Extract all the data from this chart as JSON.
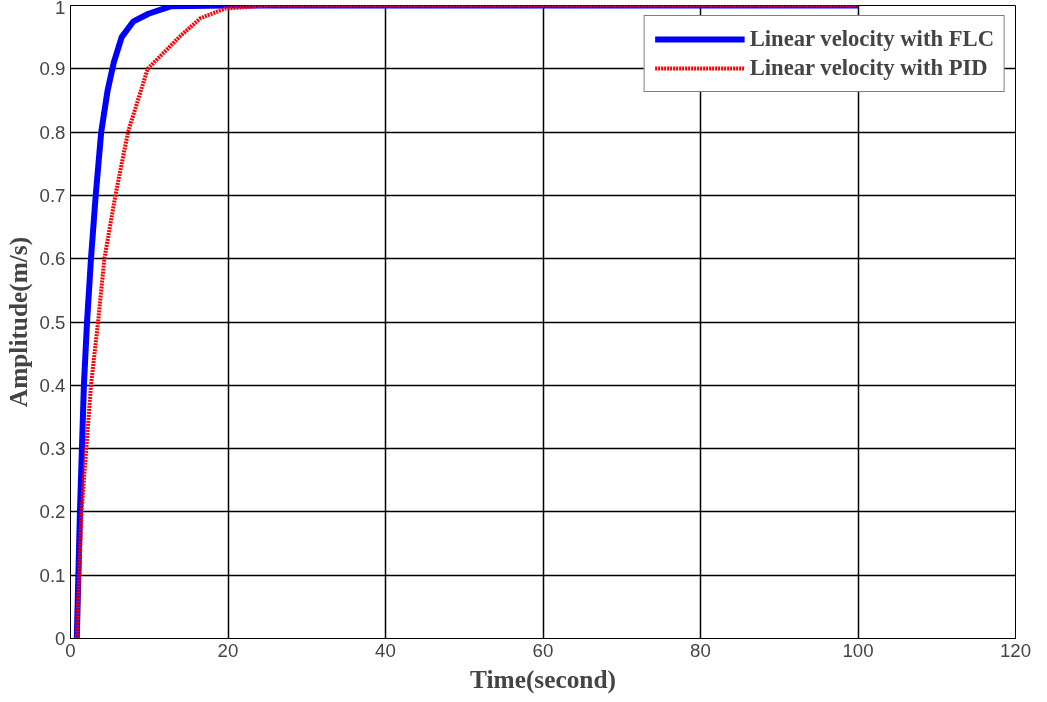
{
  "chart_data": {
    "type": "line",
    "xlabel": "Time(second)",
    "ylabel": "Amplitude(m/s)",
    "xlim": [
      0,
      120
    ],
    "ylim": [
      0,
      1
    ],
    "xticks": [
      0,
      20,
      40,
      60,
      80,
      100,
      120
    ],
    "yticks": [
      0,
      0.1,
      0.2,
      0.3,
      0.4,
      0.5,
      0.6,
      0.7,
      0.8,
      0.9,
      1
    ],
    "grid": true,
    "legend": "top right",
    "series": [
      {
        "name": "Linear velocity with FLC",
        "color": "#0000ff",
        "line_style": "solid",
        "x": [
          0.8,
          1.2,
          1.7,
          2.1,
          2.6,
          3.2,
          3.9,
          4.7,
          5.5,
          6.5,
          8,
          9.9,
          12.8,
          20,
          40,
          60,
          80,
          100
        ],
        "values": [
          0,
          0.2,
          0.4,
          0.5,
          0.6,
          0.7,
          0.8,
          0.865,
          0.91,
          0.95,
          0.975,
          0.987,
          0.999,
          1,
          1,
          1,
          1,
          1
        ]
      },
      {
        "name": "Linear velocity with PID",
        "color": "#ff0000",
        "line_style": "dotted",
        "x": [
          0.8,
          1.4,
          2,
          2.6,
          3.5,
          4.3,
          5.7,
          7.3,
          9.8,
          13.8,
          16.5,
          19.6,
          25,
          40,
          60,
          80,
          100
        ],
        "values": [
          0,
          0.2,
          0.3,
          0.4,
          0.5,
          0.6,
          0.7,
          0.8,
          0.9,
          0.95,
          0.98,
          0.995,
          1,
          1,
          1,
          1,
          1
        ]
      }
    ]
  }
}
